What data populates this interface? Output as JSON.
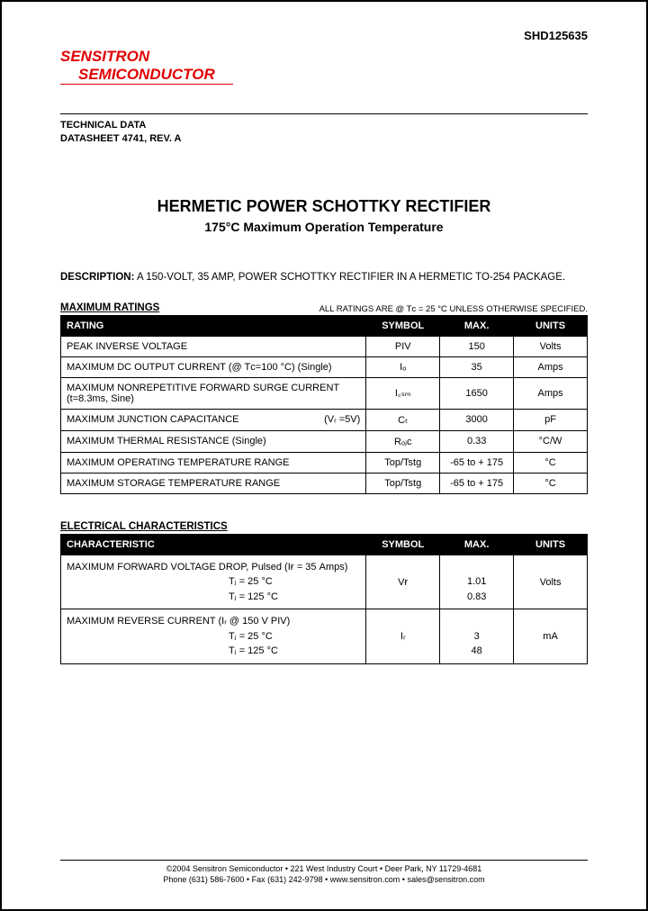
{
  "partNumber": "SHD125635",
  "logo": {
    "line1": "SENSITRON",
    "line2": "SEMICONDUCTOR"
  },
  "techData": {
    "line1": "TECHNICAL DATA",
    "line2": "DATASHEET 4741, REV. A"
  },
  "title": {
    "main": "HERMETIC POWER SCHOTTKY RECTIFIER",
    "sub": "175°C Maximum Operation Temperature"
  },
  "description": {
    "label": "DESCRIPTION:",
    "text": " A 150-VOLT, 35 AMP, POWER SCHOTTKY RECTIFIER IN A HERMETIC TO-254 PACKAGE."
  },
  "maxRatings": {
    "title": "MAXIMUM RATINGS",
    "note": "ALL RATINGS ARE @ Tᴄ = 25 °C UNLESS OTHERWISE SPECIFIED.",
    "headers": {
      "rating": "RATING",
      "symbol": "SYMBOL",
      "max": "MAX.",
      "units": "UNITS"
    },
    "rows": [
      {
        "rating": "PEAK INVERSE VOLTAGE",
        "symbol": "PIV",
        "max": "150",
        "units": "Volts"
      },
      {
        "rating": "MAXIMUM DC OUTPUT CURRENT (@ Tᴄ=100 °C) (Single)",
        "symbol": "Iₒ",
        "max": "35",
        "units": "Amps"
      },
      {
        "rating": "MAXIMUM NONREPETITIVE FORWARD SURGE CURRENT (t=8.3ms, Sine)",
        "symbol": "I꜀ₛₘ",
        "max": "1650",
        "units": "Amps"
      },
      {
        "rating": "MAXIMUM JUNCTION CAPACITANCE",
        "condition": "(Vᵣ =5V)",
        "symbol": "Cₜ",
        "max": "3000",
        "units": "pF"
      },
      {
        "rating": "MAXIMUM THERMAL RESISTANCE (Single)",
        "symbol": "Rₒⱼᴄ",
        "max": "0.33",
        "units": "°C/W"
      },
      {
        "rating": "MAXIMUM OPERATING TEMPERATURE RANGE",
        "symbol": "Top/Tstg",
        "max": "-65 to + 175",
        "units": "°C"
      },
      {
        "rating": "MAXIMUM STORAGE TEMPERATURE RANGE",
        "symbol": "Top/Tstg",
        "max": "-65 to + 175",
        "units": "°C"
      }
    ]
  },
  "elecChar": {
    "title": "ELECTRICAL CHARACTERISTICS",
    "headers": {
      "char": "CHARACTERISTIC",
      "symbol": "SYMBOL",
      "max": "MAX.",
      "units": "UNITS"
    },
    "rows": [
      {
        "label": "MAXIMUM FORWARD VOLTAGE DROP, Pulsed   (Iғ = 35 Amps)",
        "cond1": "Tⱼ = 25 °C",
        "cond2": "Tⱼ = 125 °C",
        "symbol": "Vғ",
        "max1": "1.01",
        "max2": "0.83",
        "units": "Volts"
      },
      {
        "label": "MAXIMUM REVERSE CURRENT (Iᵣ @ 150 V PIV)",
        "cond1": "Tⱼ = 25 °C",
        "cond2": "Tⱼ = 125 °C",
        "symbol": "Iᵣ",
        "max1": "3",
        "max2": "48",
        "units": "mA"
      }
    ]
  },
  "footer": {
    "line1": "©2004 Sensitron Semiconductor • 221 West Industry Court • Deer Park, NY 11729-4681",
    "line2": "Phone (631) 586-7600 • Fax (631) 242-9798 • www.sensitron.com • sales@sensitron.com"
  },
  "colors": {
    "logo": "#e00000",
    "tableHeaderBg": "#000000",
    "tableHeaderFg": "#ffffff",
    "border": "#000000",
    "text": "#000000"
  }
}
